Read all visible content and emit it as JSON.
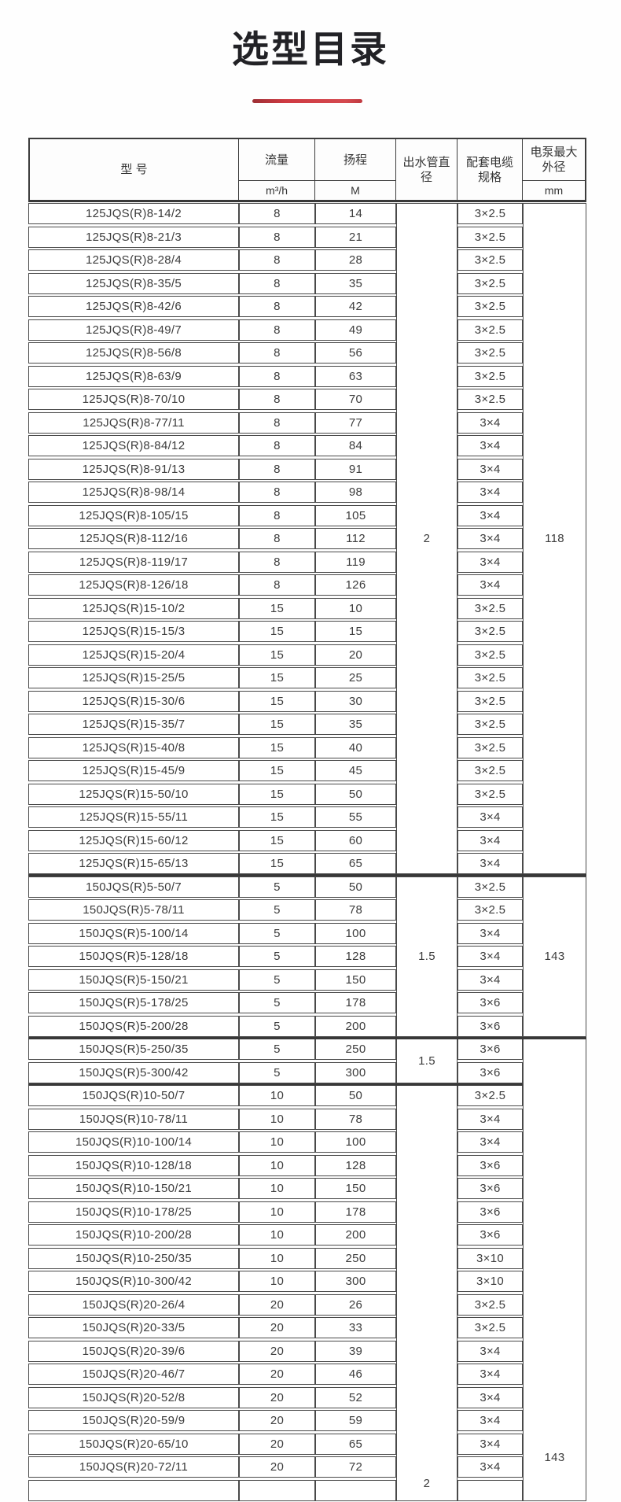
{
  "page": {
    "title": "选型目录",
    "accent_color": "#c5333b"
  },
  "table": {
    "headers": {
      "model": "型 号",
      "flow": "流量",
      "flow_unit": "m³/h",
      "head": "扬程",
      "head_unit": "M",
      "outlet": "出水管直径",
      "cable": "配套电缆规格",
      "od": "电泵最大外径",
      "od_unit": "mm"
    },
    "sections": [
      {
        "outlet_diameter": "2",
        "max_od": "118",
        "rows": [
          {
            "model": "125JQS(R)8-14/2",
            "flow": "8",
            "head": "14",
            "cable": "3×2.5"
          },
          {
            "model": "125JQS(R)8-21/3",
            "flow": "8",
            "head": "21",
            "cable": "3×2.5"
          },
          {
            "model": "125JQS(R)8-28/4",
            "flow": "8",
            "head": "28",
            "cable": "3×2.5"
          },
          {
            "model": "125JQS(R)8-35/5",
            "flow": "8",
            "head": "35",
            "cable": "3×2.5"
          },
          {
            "model": "125JQS(R)8-42/6",
            "flow": "8",
            "head": "42",
            "cable": "3×2.5"
          },
          {
            "model": "125JQS(R)8-49/7",
            "flow": "8",
            "head": "49",
            "cable": "3×2.5"
          },
          {
            "model": "125JQS(R)8-56/8",
            "flow": "8",
            "head": "56",
            "cable": "3×2.5"
          },
          {
            "model": "125JQS(R)8-63/9",
            "flow": "8",
            "head": "63",
            "cable": "3×2.5"
          },
          {
            "model": "125JQS(R)8-70/10",
            "flow": "8",
            "head": "70",
            "cable": "3×2.5"
          },
          {
            "model": "125JQS(R)8-77/11",
            "flow": "8",
            "head": "77",
            "cable": "3×4"
          },
          {
            "model": "125JQS(R)8-84/12",
            "flow": "8",
            "head": "84",
            "cable": "3×4"
          },
          {
            "model": "125JQS(R)8-91/13",
            "flow": "8",
            "head": "91",
            "cable": "3×4"
          },
          {
            "model": "125JQS(R)8-98/14",
            "flow": "8",
            "head": "98",
            "cable": "3×4"
          },
          {
            "model": "125JQS(R)8-105/15",
            "flow": "8",
            "head": "105",
            "cable": "3×4"
          },
          {
            "model": "125JQS(R)8-112/16",
            "flow": "8",
            "head": "112",
            "cable": "3×4"
          },
          {
            "model": "125JQS(R)8-119/17",
            "flow": "8",
            "head": "119",
            "cable": "3×4"
          },
          {
            "model": "125JQS(R)8-126/18",
            "flow": "8",
            "head": "126",
            "cable": "3×4"
          },
          {
            "model": "125JQS(R)15-10/2",
            "flow": "15",
            "head": "10",
            "cable": "3×2.5"
          },
          {
            "model": "125JQS(R)15-15/3",
            "flow": "15",
            "head": "15",
            "cable": "3×2.5"
          },
          {
            "model": "125JQS(R)15-20/4",
            "flow": "15",
            "head": "20",
            "cable": "3×2.5"
          },
          {
            "model": "125JQS(R)15-25/5",
            "flow": "15",
            "head": "25",
            "cable": "3×2.5"
          },
          {
            "model": "125JQS(R)15-30/6",
            "flow": "15",
            "head": "30",
            "cable": "3×2.5"
          },
          {
            "model": "125JQS(R)15-35/7",
            "flow": "15",
            "head": "35",
            "cable": "3×2.5"
          },
          {
            "model": "125JQS(R)15-40/8",
            "flow": "15",
            "head": "40",
            "cable": "3×2.5"
          },
          {
            "model": "125JQS(R)15-45/9",
            "flow": "15",
            "head": "45",
            "cable": "3×2.5"
          },
          {
            "model": "125JQS(R)15-50/10",
            "flow": "15",
            "head": "50",
            "cable": "3×2.5"
          },
          {
            "model": "125JQS(R)15-55/11",
            "flow": "15",
            "head": "55",
            "cable": "3×4"
          },
          {
            "model": "125JQS(R)15-60/12",
            "flow": "15",
            "head": "60",
            "cable": "3×4"
          },
          {
            "model": "125JQS(R)15-65/13",
            "flow": "15",
            "head": "65",
            "cable": "3×4"
          }
        ]
      },
      {
        "outlet_diameter": "1.5",
        "max_od": "143",
        "rows": [
          {
            "model": "150JQS(R)5-50/7",
            "flow": "5",
            "head": "50",
            "cable": "3×2.5"
          },
          {
            "model": "150JQS(R)5-78/11",
            "flow": "5",
            "head": "78",
            "cable": "3×2.5"
          },
          {
            "model": "150JQS(R)5-100/14",
            "flow": "5",
            "head": "100",
            "cable": "3×4"
          },
          {
            "model": "150JQS(R)5-128/18",
            "flow": "5",
            "head": "128",
            "cable": "3×4"
          },
          {
            "model": "150JQS(R)5-150/21",
            "flow": "5",
            "head": "150",
            "cable": "3×4"
          },
          {
            "model": "150JQS(R)5-178/25",
            "flow": "5",
            "head": "178",
            "cable": "3×6"
          },
          {
            "model": "150JQS(R)5-200/28",
            "flow": "5",
            "head": "200",
            "cable": "3×6"
          }
        ]
      },
      {
        "outlet_diameter": "1.5",
        "max_od": "143",
        "rows": [
          {
            "model": "150JQS(R)5-250/35",
            "flow": "5",
            "head": "250",
            "cable": "3×6"
          },
          {
            "model": "150JQS(R)5-300/42",
            "flow": "5",
            "head": "300",
            "cable": "3×6"
          }
        ]
      },
      {
        "outlet_diameter": "2",
        "max_od": "",
        "rows": [
          {
            "model": "150JQS(R)10-50/7",
            "flow": "10",
            "head": "50",
            "cable": "3×2.5"
          },
          {
            "model": "150JQS(R)10-78/11",
            "flow": "10",
            "head": "78",
            "cable": "3×4"
          },
          {
            "model": "150JQS(R)10-100/14",
            "flow": "10",
            "head": "100",
            "cable": "3×4"
          },
          {
            "model": "150JQS(R)10-128/18",
            "flow": "10",
            "head": "128",
            "cable": "3×6"
          },
          {
            "model": "150JQS(R)10-150/21",
            "flow": "10",
            "head": "150",
            "cable": "3×6"
          },
          {
            "model": "150JQS(R)10-178/25",
            "flow": "10",
            "head": "178",
            "cable": "3×6"
          },
          {
            "model": "150JQS(R)10-200/28",
            "flow": "10",
            "head": "200",
            "cable": "3×6"
          },
          {
            "model": "150JQS(R)10-250/35",
            "flow": "10",
            "head": "250",
            "cable": "3×10"
          },
          {
            "model": "150JQS(R)10-300/42",
            "flow": "10",
            "head": "300",
            "cable": "3×10"
          },
          {
            "model": "150JQS(R)20-26/4",
            "flow": "20",
            "head": "26",
            "cable": "3×2.5"
          },
          {
            "model": "150JQS(R)20-33/5",
            "flow": "20",
            "head": "33",
            "cable": "3×2.5"
          },
          {
            "model": "150JQS(R)20-39/6",
            "flow": "20",
            "head": "39",
            "cable": "3×4"
          },
          {
            "model": "150JQS(R)20-46/7",
            "flow": "20",
            "head": "46",
            "cable": "3×4"
          },
          {
            "model": "150JQS(R)20-52/8",
            "flow": "20",
            "head": "52",
            "cable": "3×4"
          },
          {
            "model": "150JQS(R)20-59/9",
            "flow": "20",
            "head": "59",
            "cable": "3×4"
          },
          {
            "model": "150JQS(R)20-65/10",
            "flow": "20",
            "head": "65",
            "cable": "3×4"
          },
          {
            "model": "150JQS(R)20-72/11",
            "flow": "20",
            "head": "72",
            "cable": "3×4"
          }
        ]
      }
    ]
  }
}
